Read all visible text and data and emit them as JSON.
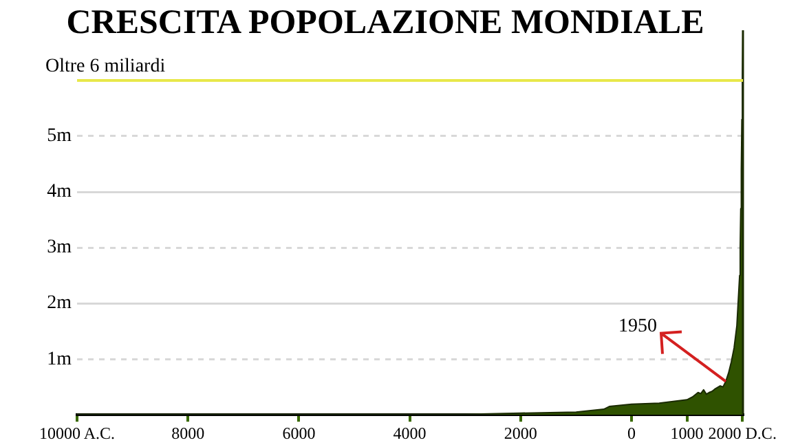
{
  "chart_data": {
    "type": "area",
    "title": "CRESCITA POPOLAZIONE MONDIALE",
    "x": [
      -10000,
      -8000,
      -6000,
      -4000,
      -3000,
      -2000,
      -1000,
      -500,
      -400,
      0,
      500,
      1000,
      1100,
      1200,
      1250,
      1300,
      1350,
      1400,
      1450,
      1500,
      1600,
      1650,
      1700,
      1750,
      1800,
      1850,
      1900,
      1950,
      1960,
      1970,
      1980,
      1990,
      2000,
      2010
    ],
    "series": [
      {
        "color": "#2f5200",
        "values": [
          0.01,
          0.01,
          0.01,
          0.01,
          0.01,
          0.03,
          0.05,
          0.1,
          0.15,
          0.19,
          0.21,
          0.27,
          0.32,
          0.4,
          0.38,
          0.45,
          0.37,
          0.4,
          0.42,
          0.46,
          0.52,
          0.5,
          0.6,
          0.75,
          0.95,
          1.2,
          1.6,
          2.5,
          3.0,
          3.7,
          4.4,
          5.3,
          6.1,
          6.9
        ]
      }
    ],
    "xlim": [
      -10000,
      2010
    ],
    "xticks": [
      {
        "value": -10000,
        "label": "10000 A.C."
      },
      {
        "value": -8000,
        "label": "8000"
      },
      {
        "value": -6000,
        "label": "6000"
      },
      {
        "value": -4000,
        "label": "4000"
      },
      {
        "value": -2000,
        "label": "2000"
      },
      0,
      1000,
      {
        "value": 2000,
        "label": "2000 D.C."
      }
    ],
    "yticks": [
      {
        "value": 1,
        "label": "1m"
      },
      {
        "value": 2,
        "label": "2m"
      },
      {
        "value": 3,
        "label": "3m"
      },
      {
        "value": 4,
        "label": "4m"
      },
      {
        "value": 5,
        "label": "5m"
      }
    ],
    "ylim": [
      0,
      6.9
    ],
    "grid": "y",
    "legend": false,
    "ref_lines": [
      {
        "axis": "y",
        "value": 6,
        "label": "Oltre 6 miliardi",
        "color": "#e8e84a"
      }
    ],
    "annotations": [
      {
        "text": "1950",
        "x": 1700,
        "y": 0.6
      }
    ]
  }
}
